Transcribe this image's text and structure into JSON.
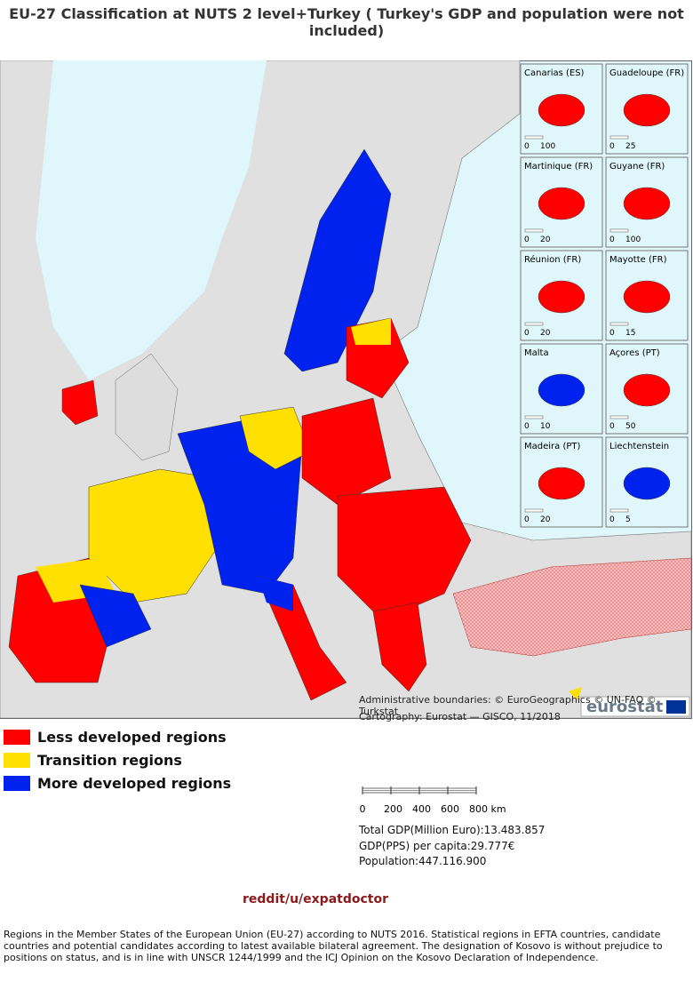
{
  "header": {
    "title": "EU-27 Classification at NUTS 2 level+Turkey ( Turkey's GDP and population were not included)"
  },
  "insets": [
    {
      "label": "Canarias (ES)",
      "scale": [
        "0",
        "100"
      ]
    },
    {
      "label": "Guadeloupe (FR)",
      "scale": [
        "0",
        "25"
      ]
    },
    {
      "label": "Martinique (FR)",
      "scale": [
        "0",
        "20"
      ]
    },
    {
      "label": "Guyane (FR)",
      "scale": [
        "0",
        "100"
      ]
    },
    {
      "label": "Réunion (FR)",
      "scale": [
        "0",
        "20"
      ]
    },
    {
      "label": "Mayotte (FR)",
      "scale": [
        "0",
        "15"
      ]
    },
    {
      "label": "Malta",
      "scale": [
        "0",
        "10"
      ]
    },
    {
      "label": "Açores (PT)",
      "scale": [
        "0",
        "50"
      ]
    },
    {
      "label": "Madeira (PT)",
      "scale": [
        "0",
        "20"
      ]
    },
    {
      "label": "Liechtenstein",
      "scale": [
        "0",
        "5"
      ]
    }
  ],
  "map": {
    "logo": "eurostat",
    "credits": [
      "Administrative boundaries: © EuroGeographics © UN-FAO © Turkstat",
      "Cartography: Eurostat — GISCO, 11/2018"
    ]
  },
  "legend": [
    {
      "label": "Less developed regions",
      "color": "#ff0000"
    },
    {
      "label": "Transition regions",
      "color": "#ffe000"
    },
    {
      "label": "More developed regions",
      "color": "#0022ee"
    }
  ],
  "scale_bar": {
    "labels": [
      "0",
      "200",
      "400",
      "600",
      "800 km"
    ]
  },
  "stats": [
    "Total GDP(Million Euro):13.483.857",
    "GDP(PPS) per capita:29.777€",
    "Population:447.116.900"
  ],
  "source": "reddit/u/expatdoctor",
  "footnote": "Regions in the Member States of the European Union (EU-27) according to NUTS 2016. Statistical regions in EFTA countries, candidate countries and potential candidates according to latest available bilateral agreement. The designation of Kosovo is without prejudice to positions on status, and is in line with UNSCR 1244/1999 and the ICJ Opinion on the Kosovo Declaration of Independence."
}
